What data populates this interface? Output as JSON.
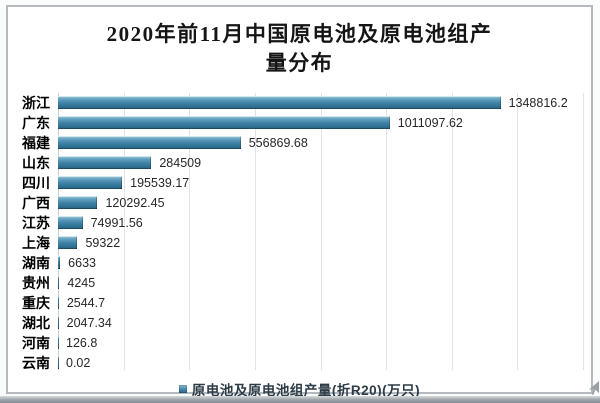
{
  "chart": {
    "title_lines": [
      "2020年前11月中国原电池及原电池组产",
      "量分布"
    ]
  },
  "chart_data": {
    "type": "bar",
    "orientation": "horizontal",
    "title": "2020年前11月中国原电池及原电池组产量分布",
    "categories": [
      "浙江",
      "广东",
      "福建",
      "山东",
      "四川",
      "广西",
      "江苏",
      "上海",
      "湖南",
      "贵州",
      "重庆",
      "湖北",
      "河南",
      "云南"
    ],
    "values": [
      1348816.2,
      1011097.62,
      556869.68,
      284509,
      195539.17,
      120292.45,
      74991.56,
      59322,
      6633,
      4245,
      2544.7,
      2047.34,
      126.8,
      0.02
    ],
    "value_labels": [
      "1348816.2",
      "1011097.62",
      "556869.68",
      "284509",
      "195539.17",
      "120292.45",
      "74991.56",
      "59322",
      "6633",
      "4245",
      "2544.7",
      "2047.34",
      "126.8",
      "0.02"
    ],
    "legend": [
      "原电池及原电池组产量(折R20)(万只)"
    ],
    "legend_position": "bottom",
    "data_labels": true,
    "grid": "vertical",
    "xlim": [
      0,
      1600000
    ],
    "gridline_interval": 200000,
    "bar_color": "#3f83a8",
    "bar_gradient": [
      "#a9cfdf",
      "#4587ab",
      "#27607f"
    ],
    "background_color": "#ffffff",
    "border_color": "#b3b9bc"
  }
}
